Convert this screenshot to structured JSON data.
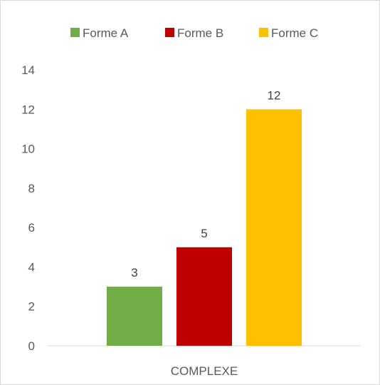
{
  "chart_data": {
    "type": "bar",
    "title": "",
    "xlabel": "",
    "ylabel": "",
    "categories": [
      "COMPLEXE"
    ],
    "series": [
      {
        "name": "Forme A",
        "values": [
          3
        ],
        "color": "#70ad47"
      },
      {
        "name": "Forme B",
        "values": [
          5
        ],
        "color": "#c00000"
      },
      {
        "name": "Forme C",
        "values": [
          12
        ],
        "color": "#ffc000"
      }
    ],
    "ylim": [
      0,
      14
    ],
    "yticks": [
      0,
      2,
      4,
      6,
      8,
      10,
      12,
      14
    ],
    "ytick_labels": [
      "0",
      "2",
      "4",
      "6",
      "8",
      "10",
      "12",
      "14"
    ],
    "data_labels": [
      "3",
      "5",
      "12"
    ],
    "grid": false,
    "legend_position": "top"
  }
}
